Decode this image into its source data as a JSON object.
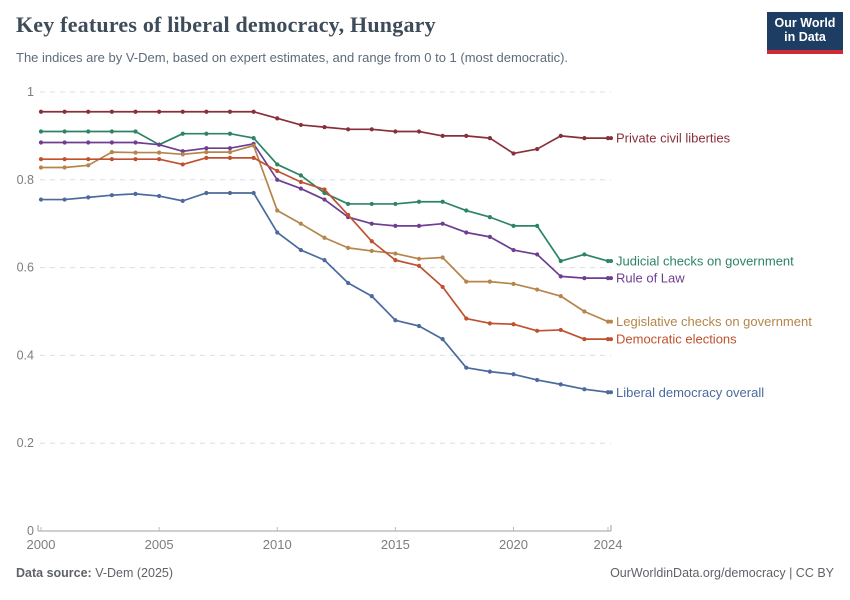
{
  "header": {
    "title": "Key features of liberal democracy, Hungary",
    "subtitle": "The indices are by V-Dem, based on expert estimates, and range from 0 to 1 (most democratic).",
    "logo": {
      "line1": "Our World",
      "line2": "in Data",
      "bg": "#1d3d63",
      "accent": "#ce2b37"
    }
  },
  "footer": {
    "source_label": "Data source:",
    "source_value": " V-Dem (2025)",
    "right_text": "OurWorldinData.org/democracy | CC BY"
  },
  "chart_data": {
    "type": "line",
    "title": "Key features of liberal democracy, Hungary",
    "xlabel": "",
    "ylabel": "",
    "x_min": 2000,
    "x_max": 2024,
    "ylim": [
      0,
      1
    ],
    "yticks": [
      0,
      0.2,
      0.4,
      0.6,
      0.8,
      1
    ],
    "xticks": [
      2000,
      2005,
      2010,
      2015,
      2020,
      2024
    ],
    "grid": "horizontal-dashed",
    "legend_position": "end-of-line-labels",
    "x": [
      2000,
      2001,
      2002,
      2003,
      2004,
      2005,
      2006,
      2007,
      2008,
      2009,
      2010,
      2011,
      2012,
      2013,
      2014,
      2015,
      2016,
      2017,
      2018,
      2019,
      2020,
      2021,
      2022,
      2023,
      2024
    ],
    "series": [
      {
        "name": "Private civil liberties",
        "color": "#883039",
        "values": [
          0.955,
          0.955,
          0.955,
          0.955,
          0.955,
          0.955,
          0.955,
          0.955,
          0.955,
          0.955,
          0.94,
          0.925,
          0.92,
          0.915,
          0.915,
          0.91,
          0.91,
          0.9,
          0.9,
          0.895,
          0.86,
          0.87,
          0.9,
          0.895,
          0.895
        ]
      },
      {
        "name": "Judicial checks on government",
        "color": "#2c8465",
        "values": [
          0.91,
          0.91,
          0.91,
          0.91,
          0.91,
          0.88,
          0.905,
          0.905,
          0.905,
          0.895,
          0.835,
          0.81,
          0.77,
          0.745,
          0.745,
          0.745,
          0.75,
          0.75,
          0.73,
          0.715,
          0.695,
          0.695,
          0.615,
          0.63,
          0.615
        ]
      },
      {
        "name": "Rule of Law",
        "color": "#6d3e91",
        "values": [
          0.885,
          0.885,
          0.885,
          0.885,
          0.885,
          0.88,
          0.865,
          0.872,
          0.872,
          0.882,
          0.8,
          0.78,
          0.755,
          0.715,
          0.7,
          0.695,
          0.695,
          0.7,
          0.68,
          0.67,
          0.64,
          0.63,
          0.58,
          0.576,
          0.576
        ]
      },
      {
        "name": "Legislative checks on government",
        "color": "#b5854b",
        "values": [
          0.828,
          0.828,
          0.833,
          0.863,
          0.862,
          0.862,
          0.858,
          0.863,
          0.863,
          0.878,
          0.73,
          0.7,
          0.668,
          0.645,
          0.638,
          0.632,
          0.62,
          0.623,
          0.568,
          0.568,
          0.563,
          0.55,
          0.535,
          0.5,
          0.477
        ]
      },
      {
        "name": "Democratic elections",
        "color": "#c0512f",
        "values": [
          0.847,
          0.847,
          0.847,
          0.847,
          0.847,
          0.847,
          0.835,
          0.85,
          0.85,
          0.85,
          0.82,
          0.795,
          0.778,
          0.72,
          0.66,
          0.617,
          0.604,
          0.556,
          0.484,
          0.473,
          0.471,
          0.456,
          0.458,
          0.437,
          0.437
        ]
      },
      {
        "name": "Liberal democracy overall",
        "color": "#4c6a9c",
        "values": [
          0.755,
          0.755,
          0.76,
          0.765,
          0.768,
          0.763,
          0.752,
          0.77,
          0.77,
          0.77,
          0.68,
          0.64,
          0.617,
          0.565,
          0.535,
          0.48,
          0.467,
          0.437,
          0.372,
          0.363,
          0.357,
          0.344,
          0.334,
          0.323,
          0.316
        ]
      }
    ]
  }
}
